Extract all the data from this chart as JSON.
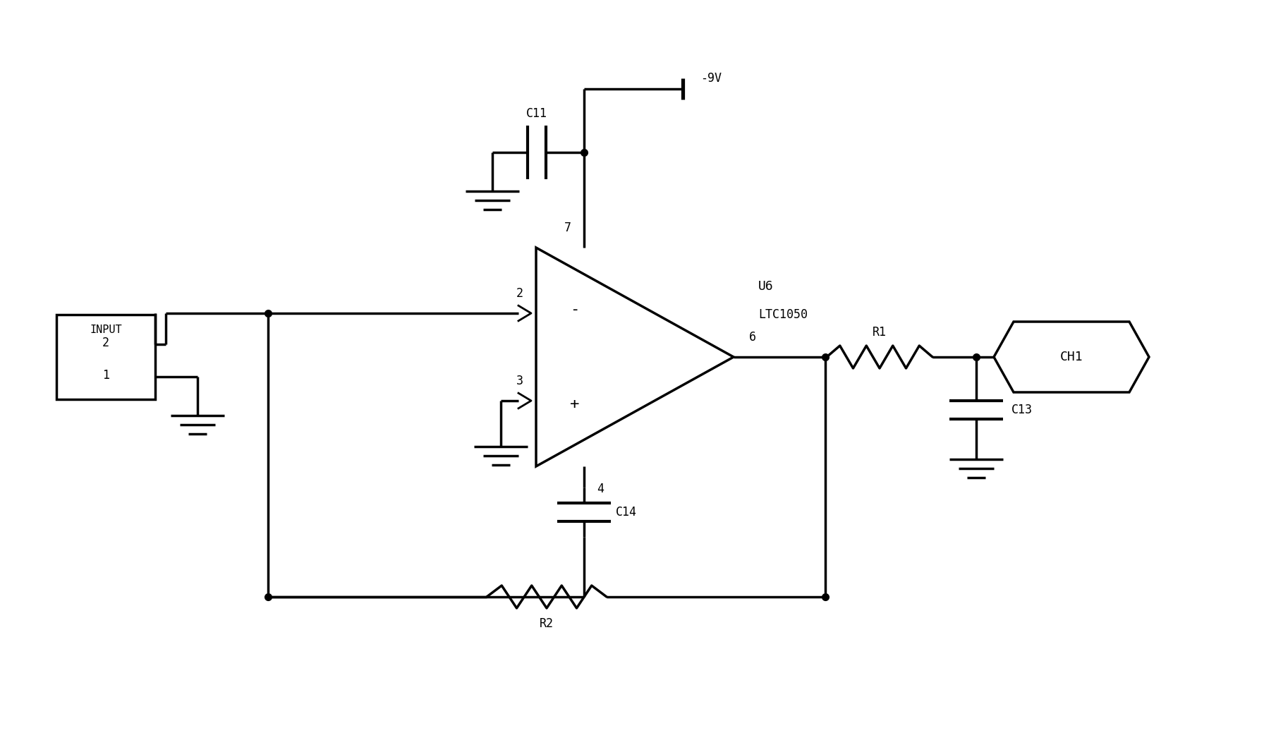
{
  "bg_color": "#ffffff",
  "line_color": "#000000",
  "lw": 2.5,
  "figsize": [
    17.92,
    10.56
  ],
  "dpi": 100,
  "xlim": [
    0,
    17.92
  ],
  "ylim": [
    0,
    10.56
  ]
}
